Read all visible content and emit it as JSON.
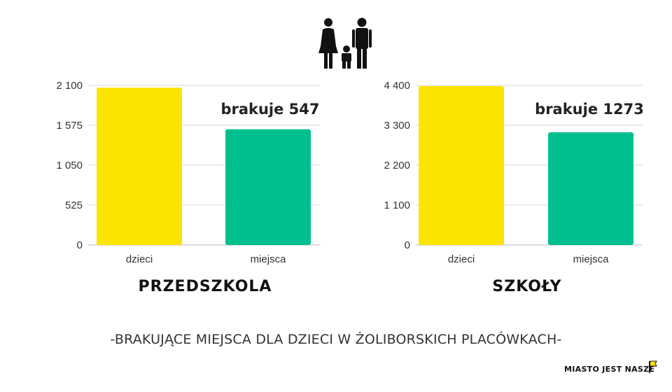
{
  "chart_data": [
    {
      "type": "bar",
      "title": "PRZEDSZKOLA",
      "categories": [
        "dzieci",
        "miejsca"
      ],
      "values": [
        2070,
        1523
      ],
      "ylim": [
        0,
        2100
      ],
      "yticks": [
        "0",
        "525",
        "1 050",
        "1 575",
        "2 100"
      ],
      "ytick_values": [
        0,
        525,
        1050,
        1575,
        2100
      ],
      "annotation": "brakuje 547",
      "grid": true,
      "colors": [
        "#FBE500",
        "#00BF8F"
      ]
    },
    {
      "type": "bar",
      "title": "SZKOŁY",
      "categories": [
        "dzieci",
        "miejsca"
      ],
      "values": [
        4380,
        3107
      ],
      "ylim": [
        0,
        4400
      ],
      "yticks": [
        "0",
        "1 100",
        "2 200",
        "3 300",
        "4 400"
      ],
      "ytick_values": [
        0,
        1100,
        2200,
        3300,
        4400
      ],
      "annotation": "brakuje 1273",
      "grid": true,
      "colors": [
        "#FBE500",
        "#00BF8F"
      ]
    }
  ],
  "footer": "-BRAKUJĄCE MIEJSCA  DLA DZIECI W ŻOLIBORSKICH PLACÓWKACH-",
  "logo_text": "MIASTO JEST NASZE",
  "icons": [
    "family-icon",
    "flag-icon"
  ]
}
